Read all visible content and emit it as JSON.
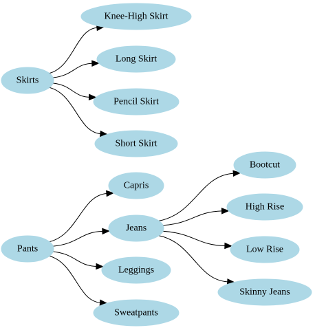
{
  "colors": {
    "node_fill": "#add8e6",
    "edge": "#000000",
    "text": "#000000",
    "background": "#ffffff"
  },
  "nodes": [
    {
      "id": "skirts",
      "label": "Skirts"
    },
    {
      "id": "knee-high-skirt",
      "label": "Knee-High Skirt"
    },
    {
      "id": "long-skirt",
      "label": "Long Skirt"
    },
    {
      "id": "pencil-skirt",
      "label": "Pencil Skirt"
    },
    {
      "id": "short-skirt",
      "label": "Short Skirt"
    },
    {
      "id": "pants",
      "label": "Pants"
    },
    {
      "id": "capris",
      "label": "Capris"
    },
    {
      "id": "jeans",
      "label": "Jeans"
    },
    {
      "id": "leggings",
      "label": "Leggings"
    },
    {
      "id": "sweatpants",
      "label": "Sweatpants"
    },
    {
      "id": "bootcut",
      "label": "Bootcut"
    },
    {
      "id": "high-rise",
      "label": "High Rise"
    },
    {
      "id": "low-rise",
      "label": "Low Rise"
    },
    {
      "id": "skinny-jeans",
      "label": "Skinny Jeans"
    }
  ],
  "edges": [
    {
      "from": "skirts",
      "to": "knee-high-skirt"
    },
    {
      "from": "skirts",
      "to": "long-skirt"
    },
    {
      "from": "skirts",
      "to": "pencil-skirt"
    },
    {
      "from": "skirts",
      "to": "short-skirt"
    },
    {
      "from": "pants",
      "to": "capris"
    },
    {
      "from": "pants",
      "to": "jeans"
    },
    {
      "from": "pants",
      "to": "leggings"
    },
    {
      "from": "pants",
      "to": "sweatpants"
    },
    {
      "from": "jeans",
      "to": "bootcut"
    },
    {
      "from": "jeans",
      "to": "high-rise"
    },
    {
      "from": "jeans",
      "to": "low-rise"
    },
    {
      "from": "jeans",
      "to": "skinny-jeans"
    }
  ]
}
